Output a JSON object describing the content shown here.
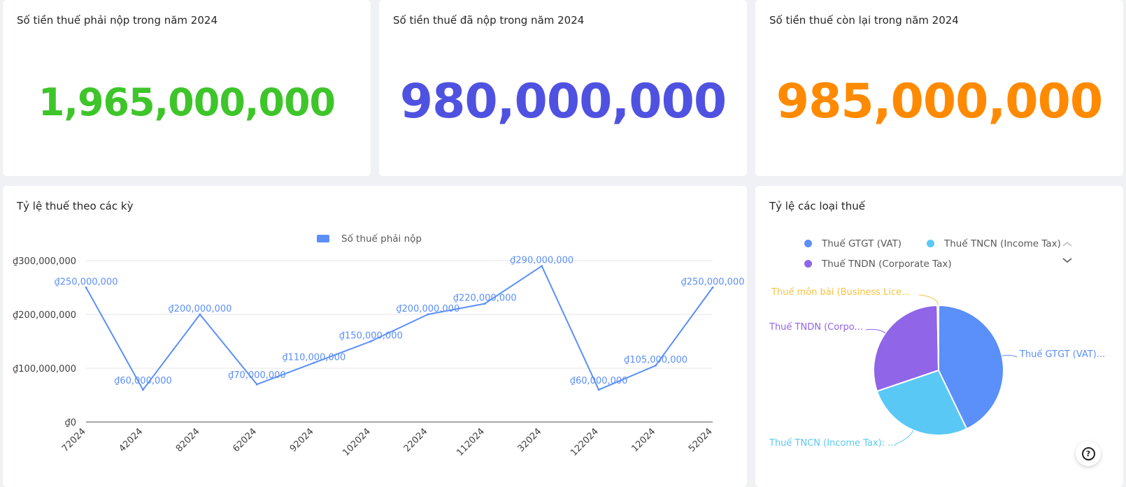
{
  "kpis": [
    {
      "title": "Số tiền thuế phải nộp trong năm 2024",
      "value": "1,965,000,000",
      "color": "#3ec52a"
    },
    {
      "title": "Số tiền thuế đã nộp trong năm 2024",
      "value": "980,000,000",
      "color": "#4f52e0"
    },
    {
      "title": "Số tiền thuế còn lại trong năm 2024",
      "value": "985,000,000",
      "color": "#ff8a00"
    }
  ],
  "line_card": {
    "title": "Tỷ lệ thuế theo các kỳ"
  },
  "pie_card": {
    "title": "Tỷ lệ các loại thuế",
    "legend": [
      {
        "label": "Thuế GTGT (VAT)",
        "color": "#5b8ff9"
      },
      {
        "label": "Thuế TNCN (Income Tax)",
        "color": "#5ac8f4"
      },
      {
        "label": "Thuế TNDN (Corporate Tax)",
        "color": "#9065e8"
      }
    ],
    "slice_labels": [
      "Thuế môn bài (Business Lice...",
      "Thuế TNDN (Corpo...",
      "Thuế GTGT (VAT)...",
      "Thuế TNCN (Income Tax): ..."
    ]
  },
  "icons": {
    "legend_up": "chevron-up-icon",
    "legend_down": "chevron-down-icon",
    "help": "question-circle-icon"
  },
  "help_symbol": "?",
  "chart_data": [
    {
      "type": "line",
      "legend": "Số thuế phải nộp",
      "color": "#5b8ff9",
      "categories": [
        "72024",
        "42024",
        "82024",
        "62024",
        "92024",
        "102024",
        "22024",
        "112024",
        "32024",
        "122024",
        "12024",
        "52024"
      ],
      "series": [
        {
          "name": "Số thuế phải nộp",
          "values": [
            250000000,
            60000000,
            200000000,
            70000000,
            110000000,
            150000000,
            200000000,
            220000000,
            290000000,
            60000000,
            105000000,
            250000000
          ],
          "labels": [
            "₫250,000,000",
            "₫60,000,000",
            "₫200,000,000",
            "₫70,000,000",
            "₫110,000,000",
            "₫150,000,000",
            "₫200,000,000",
            "₫220,000,000",
            "₫290,000,000",
            "₫60,000,000",
            "₫105,000,000",
            "₫250,000,000"
          ]
        }
      ],
      "y_ticks": [
        0,
        100000000,
        200000000,
        300000000
      ],
      "y_tick_labels": [
        "₫0",
        "₫100,000,000",
        "₫200,000,000",
        "₫300,000,000"
      ],
      "ylim": [
        0,
        300000000
      ],
      "grid": true,
      "legend_position": "top"
    },
    {
      "type": "pie",
      "slices": [
        {
          "label": "Thuế GTGT (VAT)",
          "value": 43,
          "color": "#5b8ff9"
        },
        {
          "label": "Thuế TNCN (Income Tax)",
          "value": 27,
          "color": "#5ac8f4"
        },
        {
          "label": "Thuế TNDN (Corporate Tax)",
          "value": 30,
          "color": "#9065e8"
        },
        {
          "label": "Thuế môn bài (Business License)",
          "value": 0.3,
          "color": "#f6c244"
        }
      ]
    }
  ]
}
